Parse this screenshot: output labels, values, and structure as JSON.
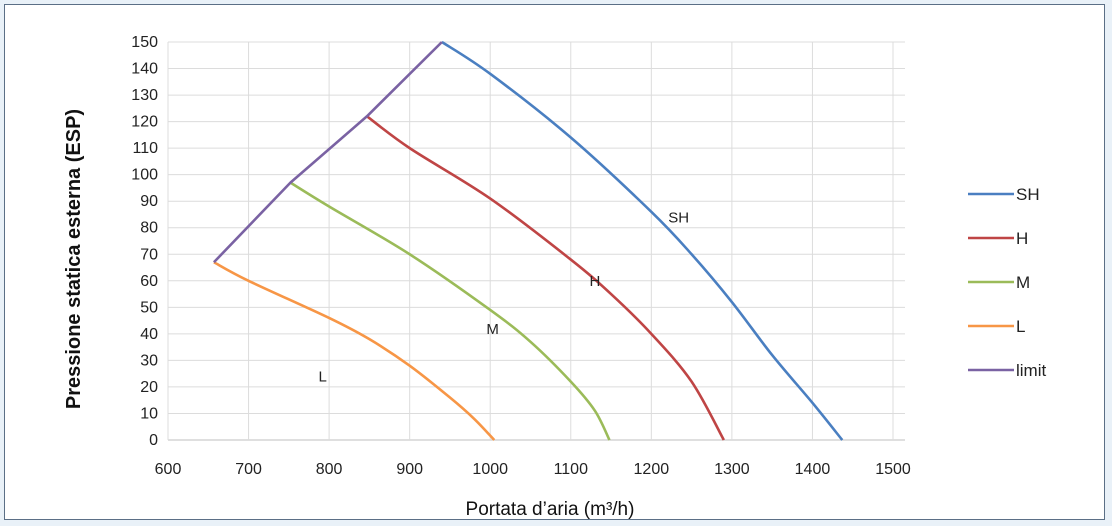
{
  "chart_data": {
    "type": "line",
    "xlabel": "Portata d’aria (m³/h)",
    "ylabel": "Pressione statica esterna (ESP)",
    "xlim": [
      600,
      1500
    ],
    "ylim": [
      0,
      150
    ],
    "x_ticks": [
      600,
      700,
      800,
      900,
      1000,
      1100,
      1200,
      1300,
      1400,
      1500
    ],
    "y_ticks": [
      0,
      10,
      20,
      30,
      40,
      50,
      60,
      70,
      80,
      90,
      100,
      110,
      120,
      130,
      140,
      150
    ],
    "grid": true,
    "legend": "right",
    "series": [
      {
        "name": "SH",
        "color": "#4a7fc1",
        "points": [
          [
            940,
            150
          ],
          [
            1000,
            138
          ],
          [
            1100,
            114
          ],
          [
            1200,
            86
          ],
          [
            1250,
            70
          ],
          [
            1300,
            52
          ],
          [
            1350,
            32
          ],
          [
            1400,
            14
          ],
          [
            1437,
            0
          ]
        ]
      },
      {
        "name": "H",
        "color": "#bf4545",
        "points": [
          [
            847,
            122
          ],
          [
            900,
            110
          ],
          [
            1000,
            91
          ],
          [
            1100,
            68
          ],
          [
            1150,
            55
          ],
          [
            1200,
            40
          ],
          [
            1250,
            22
          ],
          [
            1290,
            0
          ]
        ]
      },
      {
        "name": "M",
        "color": "#9bbb59",
        "points": [
          [
            752,
            97
          ],
          [
            800,
            88
          ],
          [
            900,
            70
          ],
          [
            1000,
            49
          ],
          [
            1050,
            37
          ],
          [
            1100,
            22
          ],
          [
            1130,
            11
          ],
          [
            1148,
            0
          ]
        ]
      },
      {
        "name": "L",
        "color": "#f79646",
        "points": [
          [
            657,
            67
          ],
          [
            700,
            60
          ],
          [
            800,
            46
          ],
          [
            850,
            38
          ],
          [
            900,
            28
          ],
          [
            950,
            16
          ],
          [
            980,
            8
          ],
          [
            1005,
            0
          ]
        ]
      },
      {
        "name": "limit",
        "color": "#7a62a3",
        "points": [
          [
            657,
            67
          ],
          [
            752,
            97
          ],
          [
            847,
            122
          ],
          [
            940,
            150
          ]
        ]
      }
    ],
    "curve_labels": [
      {
        "text": "SH",
        "x": 1234,
        "y": 82
      },
      {
        "text": "H",
        "x": 1130,
        "y": 58
      },
      {
        "text": "M",
        "x": 1003,
        "y": 40
      },
      {
        "text": "L",
        "x": 792,
        "y": 22
      }
    ]
  }
}
